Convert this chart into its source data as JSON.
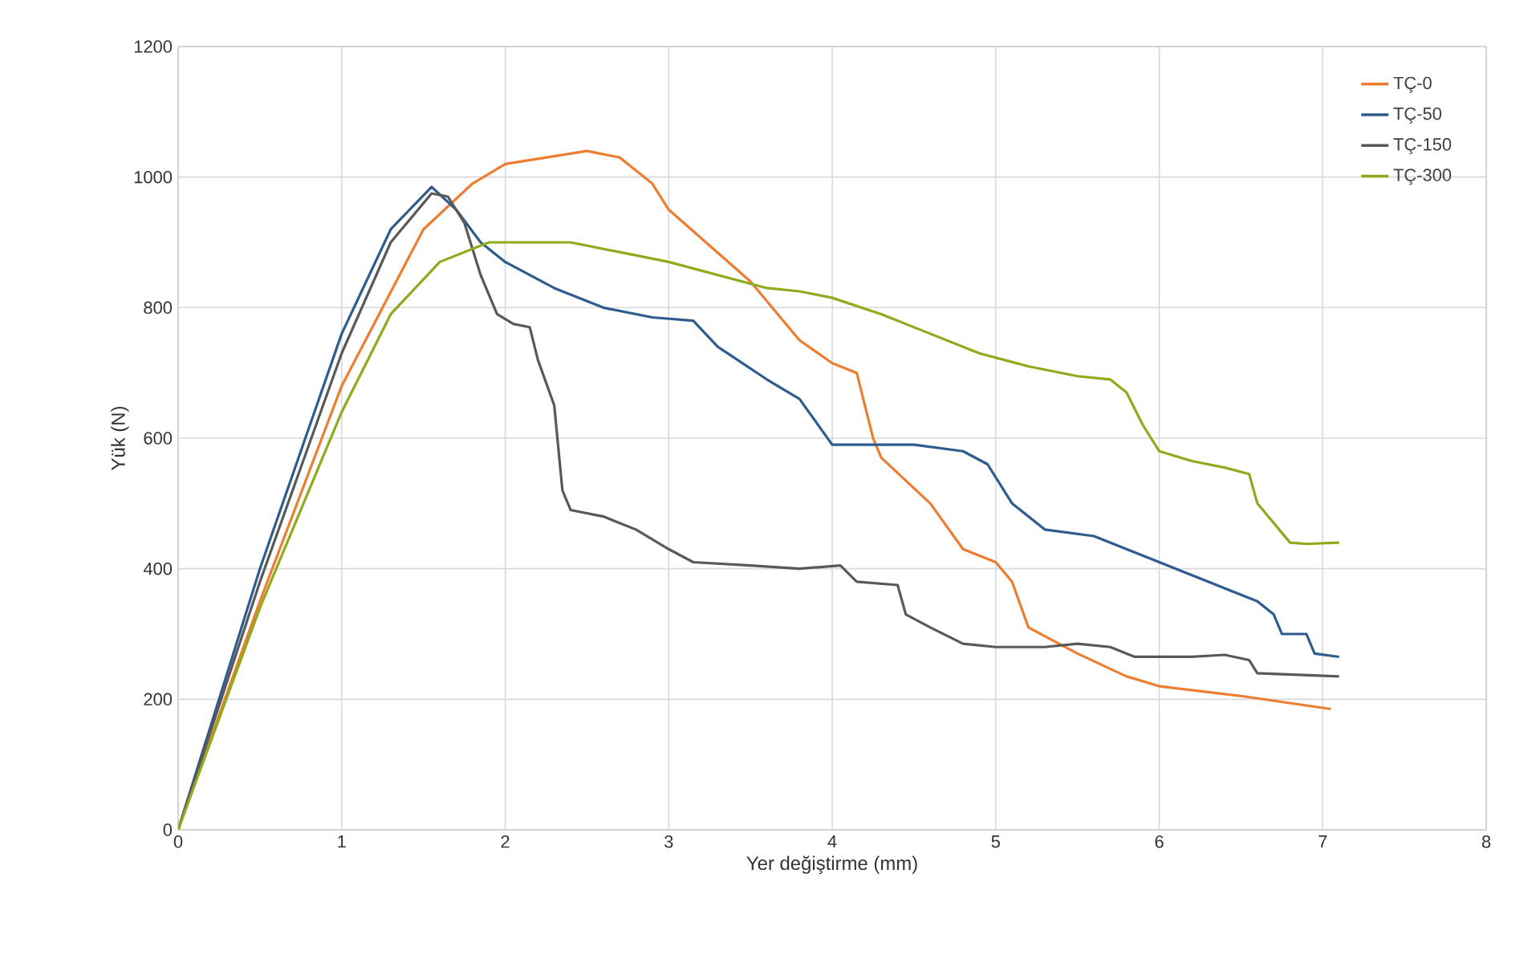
{
  "chart_data": {
    "type": "line",
    "xlabel": "Yer değiştirme (mm)",
    "ylabel": "Yük (N)",
    "xlim": [
      0,
      8
    ],
    "ylim": [
      0,
      1200
    ],
    "xticks": [
      0,
      1,
      2,
      3,
      4,
      5,
      6,
      7,
      8
    ],
    "yticks": [
      0,
      200,
      400,
      600,
      800,
      1000,
      1200
    ],
    "grid": true,
    "legend": "top right",
    "marker": "none",
    "line_style": "solid",
    "series": [
      {
        "name": "TÇ-0",
        "color": "#ed7d31",
        "x": [
          0,
          0.5,
          1.0,
          1.5,
          1.8,
          2.0,
          2.5,
          2.7,
          2.9,
          3.0,
          3.5,
          3.8,
          4.0,
          4.15,
          4.25,
          4.3,
          4.6,
          4.8,
          5.0,
          5.1,
          5.2,
          5.5,
          5.8,
          6.0,
          6.5,
          7.05
        ],
        "values": [
          0,
          350,
          680,
          920,
          990,
          1020,
          1040,
          1030,
          990,
          950,
          840,
          750,
          715,
          700,
          600,
          570,
          500,
          430,
          410,
          380,
          310,
          270,
          235,
          220,
          205,
          185
        ]
      },
      {
        "name": "TÇ-50",
        "color": "#2e5c8e",
        "x": [
          0,
          0.5,
          1.0,
          1.3,
          1.55,
          1.7,
          1.85,
          2.0,
          2.3,
          2.6,
          2.9,
          3.15,
          3.3,
          3.6,
          3.8,
          4.0,
          4.2,
          4.5,
          4.8,
          4.95,
          5.1,
          5.3,
          5.6,
          5.8,
          6.0,
          6.3,
          6.5,
          6.6,
          6.7,
          6.75,
          6.9,
          6.95,
          7.1
        ],
        "values": [
          0,
          400,
          760,
          920,
          985,
          950,
          900,
          870,
          830,
          800,
          785,
          780,
          740,
          690,
          660,
          590,
          590,
          590,
          580,
          560,
          500,
          460,
          450,
          430,
          410,
          380,
          360,
          350,
          330,
          300,
          300,
          270,
          265
        ]
      },
      {
        "name": "TÇ-150",
        "color": "#595959",
        "x": [
          0,
          0.5,
          1.0,
          1.3,
          1.55,
          1.65,
          1.75,
          1.85,
          1.95,
          2.05,
          2.15,
          2.2,
          2.3,
          2.35,
          2.4,
          2.6,
          2.8,
          3.0,
          3.15,
          3.5,
          3.8,
          4.05,
          4.15,
          4.4,
          4.45,
          4.6,
          4.8,
          5.0,
          5.3,
          5.5,
          5.7,
          5.85,
          6.2,
          6.4,
          6.55,
          6.6,
          7.1
        ],
        "values": [
          0,
          380,
          730,
          900,
          975,
          970,
          930,
          850,
          790,
          775,
          770,
          720,
          650,
          520,
          490,
          480,
          460,
          430,
          410,
          405,
          400,
          405,
          380,
          375,
          330,
          310,
          285,
          280,
          280,
          285,
          280,
          265,
          265,
          268,
          260,
          240,
          235
        ]
      },
      {
        "name": "TÇ-300",
        "color": "#8faa1b",
        "x": [
          0,
          0.5,
          1.0,
          1.3,
          1.6,
          1.9,
          2.2,
          2.4,
          2.7,
          3.0,
          3.3,
          3.6,
          3.8,
          4.0,
          4.3,
          4.6,
          4.9,
          5.2,
          5.5,
          5.7,
          5.8,
          5.9,
          6.0,
          6.2,
          6.4,
          6.55,
          6.6,
          6.7,
          6.8,
          6.9,
          7.1
        ],
        "values": [
          0,
          340,
          640,
          790,
          870,
          900,
          900,
          900,
          885,
          870,
          850,
          830,
          825,
          815,
          790,
          760,
          730,
          710,
          695,
          690,
          670,
          620,
          580,
          565,
          555,
          545,
          500,
          470,
          440,
          438,
          440
        ]
      }
    ]
  }
}
